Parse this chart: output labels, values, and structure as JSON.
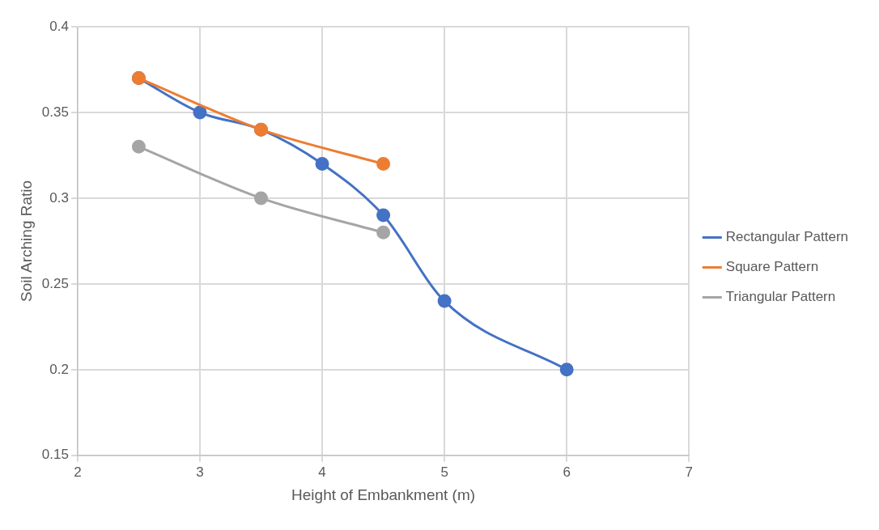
{
  "chart_data": {
    "type": "line",
    "xlabel": "Height of Embankment (m)",
    "ylabel": "Soil Arching Ratio",
    "xlim": [
      2,
      7
    ],
    "xticks": [
      2,
      3,
      4,
      5,
      6,
      7
    ],
    "ylim": [
      0.15,
      0.4
    ],
    "yticks": [
      0.15,
      0.2,
      0.25,
      0.3,
      0.35,
      0.4
    ],
    "grid": true,
    "legend": "right",
    "marker": "circle",
    "series": [
      {
        "name": "Rectangular Pattern",
        "color": "#4472c4",
        "x": [
          2.5,
          3,
          3.5,
          4,
          4.5,
          5,
          6
        ],
        "values": [
          0.37,
          0.35,
          0.34,
          0.32,
          0.29,
          0.24,
          0.2
        ]
      },
      {
        "name": "Square Pattern",
        "color": "#ed7d31",
        "x": [
          2.5,
          3.5,
          4.5
        ],
        "values": [
          0.37,
          0.34,
          0.32
        ]
      },
      {
        "name": "Triangular Pattern",
        "color": "#a5a5a5",
        "x": [
          2.5,
          3.5,
          4.5
        ],
        "values": [
          0.33,
          0.3,
          0.28
        ]
      }
    ]
  }
}
